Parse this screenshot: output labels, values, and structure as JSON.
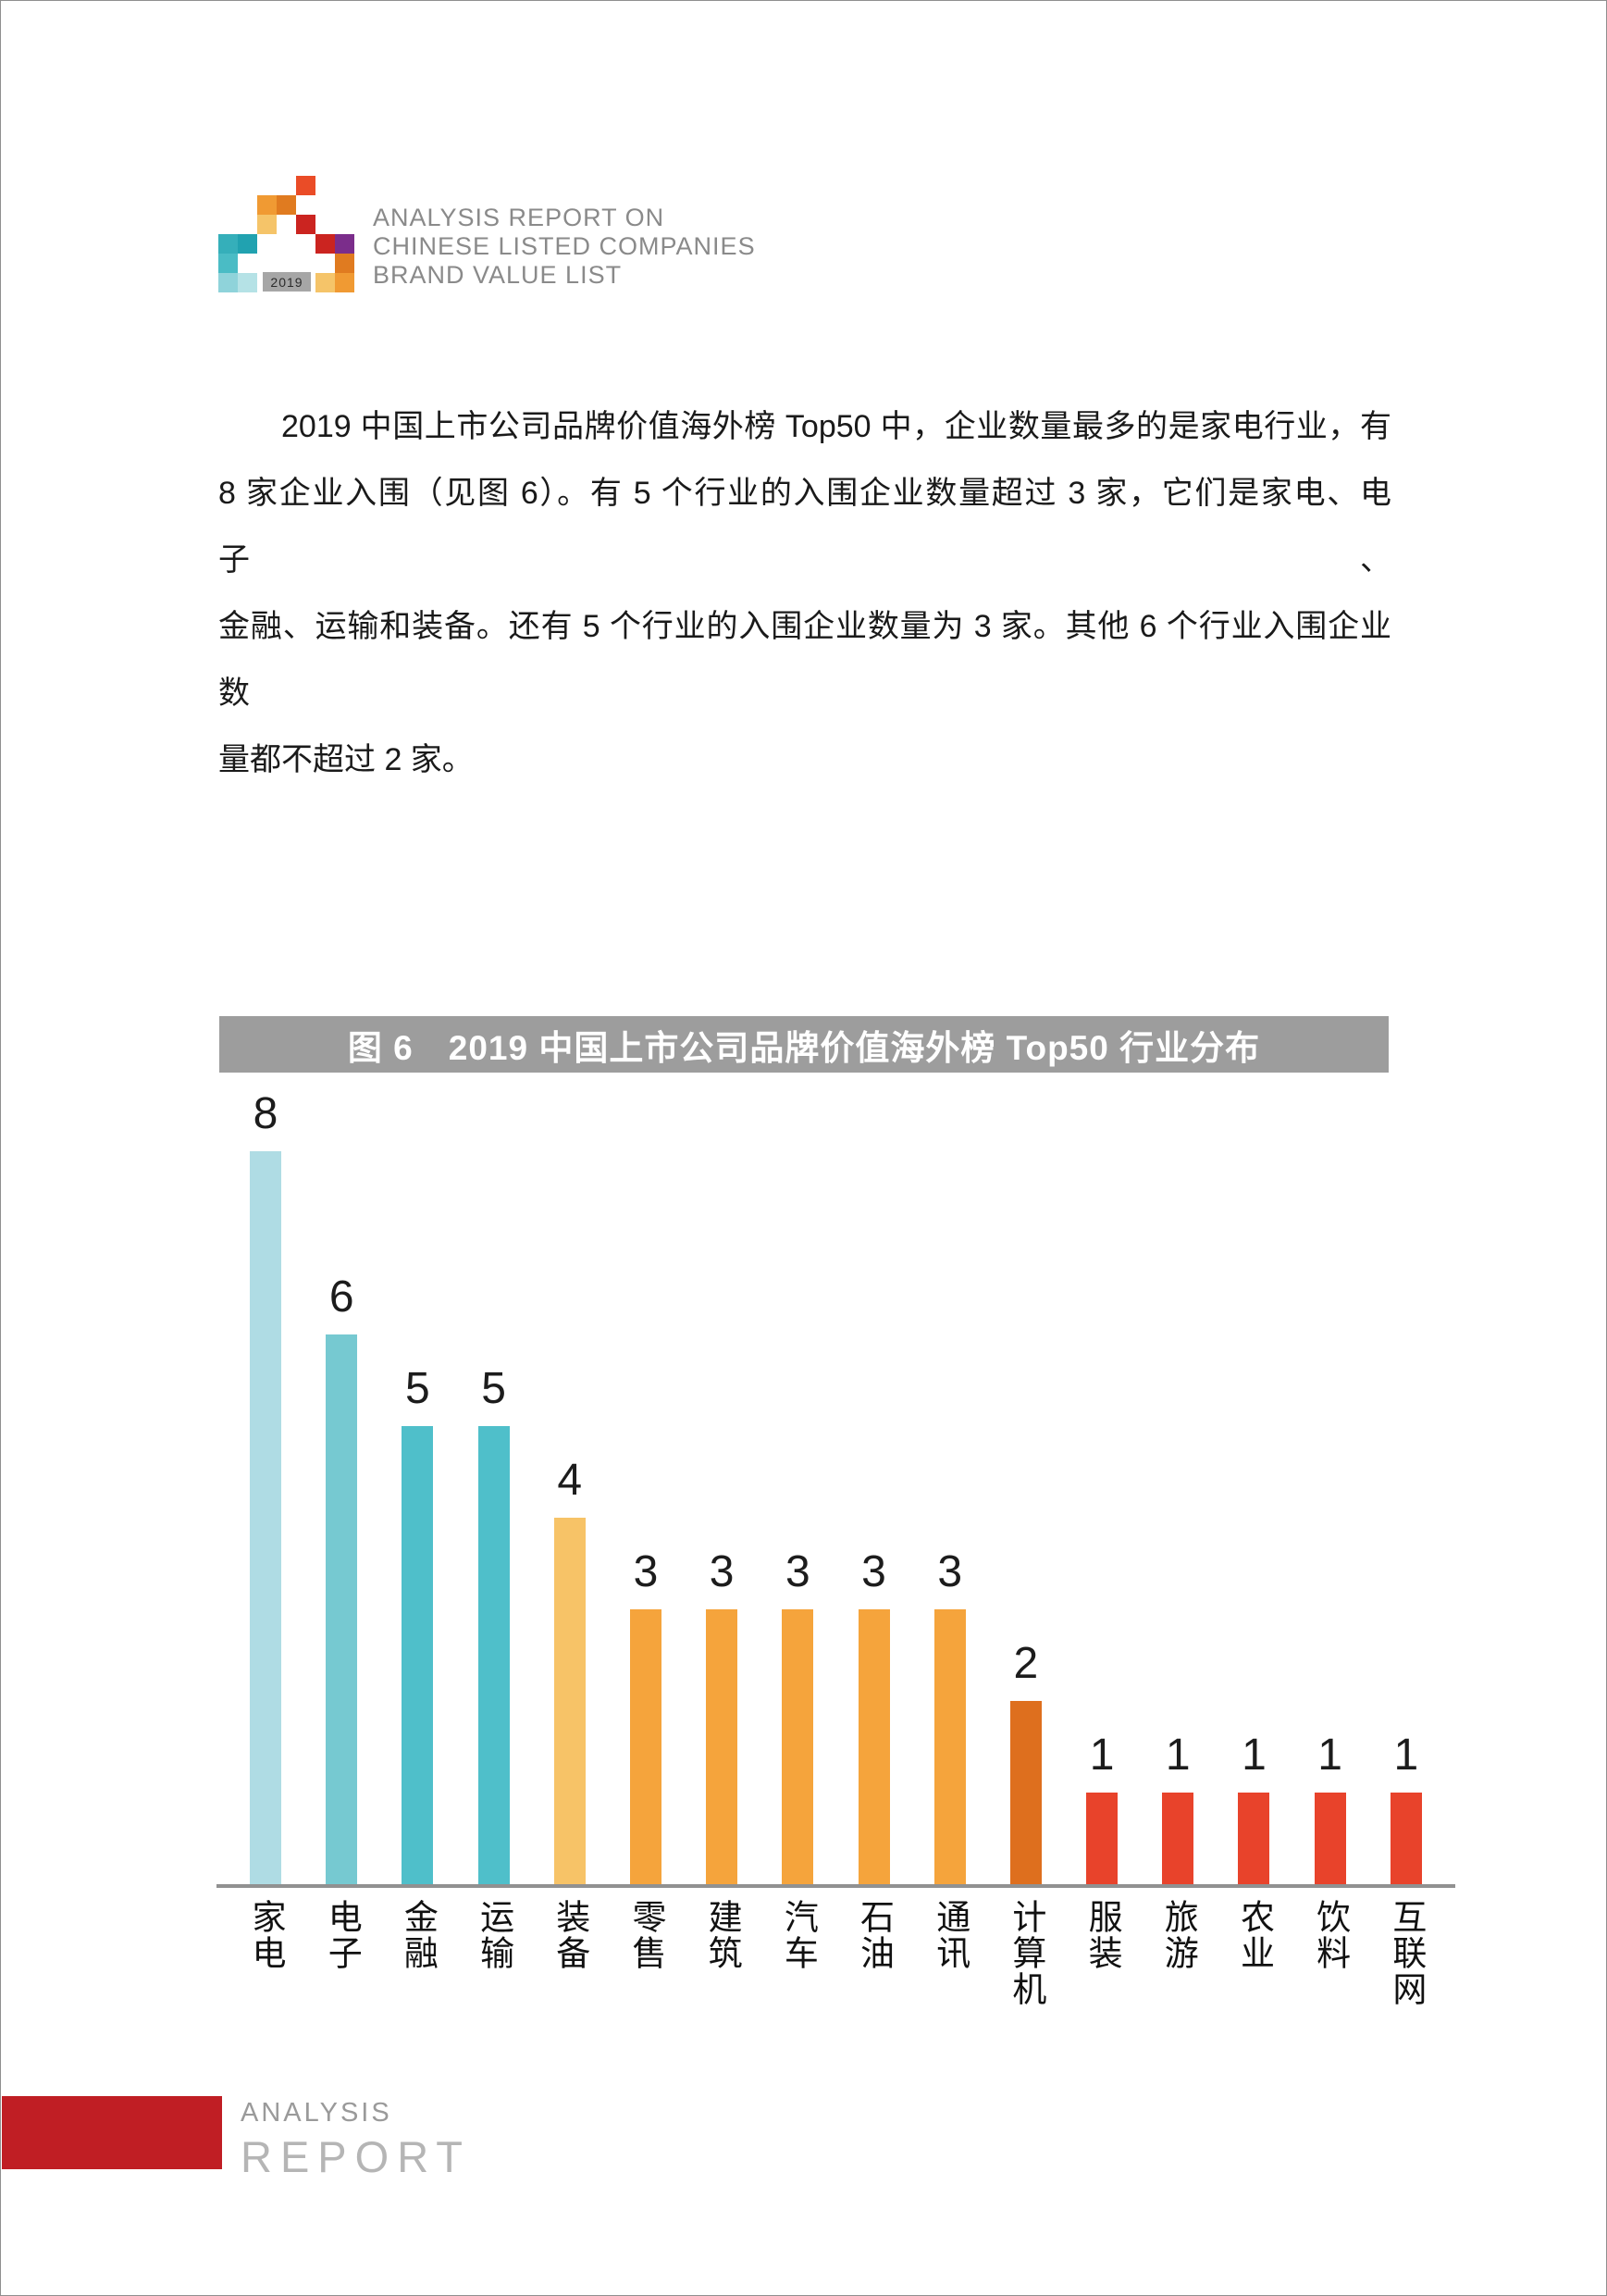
{
  "logo": {
    "year": "2019",
    "year_box_bg": "#a6a6a6",
    "title_lines": [
      "ANALYSIS REPORT ON",
      "CHINESE LISTED COMPANIES",
      "BRAND VALUE LIST"
    ],
    "squares": [
      {
        "c": 4,
        "r": 0,
        "color": "#EA4C27"
      },
      {
        "c": 2,
        "r": 1,
        "color": "#F09A33"
      },
      {
        "c": 3,
        "r": 1,
        "color": "#E07B20"
      },
      {
        "c": 2,
        "r": 2,
        "color": "#F5C469"
      },
      {
        "c": 4,
        "r": 2,
        "color": "#CB2420"
      },
      {
        "c": 0,
        "r": 3,
        "color": "#35AFBA"
      },
      {
        "c": 1,
        "r": 3,
        "color": "#21A2B0"
      },
      {
        "c": 5,
        "r": 3,
        "color": "#CB2420"
      },
      {
        "c": 6,
        "r": 3,
        "color": "#7B2D8B"
      },
      {
        "c": 0,
        "r": 4,
        "color": "#4ABCC5"
      },
      {
        "c": 6,
        "r": 4,
        "color": "#E07B20"
      },
      {
        "c": 0,
        "r": 5,
        "color": "#8FD3DA"
      },
      {
        "c": 1,
        "r": 5,
        "color": "#B5E2E6"
      },
      {
        "c": 5,
        "r": 5,
        "color": "#F5C469"
      },
      {
        "c": 6,
        "r": 5,
        "color": "#F09A33"
      }
    ]
  },
  "paragraph": {
    "lines": [
      "2019 中国上市公司品牌价值海外榜 Top50 中，企业数量最多的是家电行业，有",
      "8 家企业入围（见图 6）。有 5 个行业的入围企业数量超过 3 家，它们是家电、电子、",
      "金融、运输和装备。还有 5 个行业的入围企业数量为 3 家。其他 6 个行业入围企业数",
      "量都不超过 2 家。"
    ]
  },
  "chart_data": {
    "type": "bar",
    "title": "图 6　2019 中国上市公司品牌价值海外榜 Top50 行业分布",
    "categories": [
      "家电",
      "电子",
      "金融",
      "运输",
      "装备",
      "零售",
      "建筑",
      "汽车",
      "石油",
      "通讯",
      "计算机",
      "服装",
      "旅游",
      "农业",
      "饮料",
      "互联网"
    ],
    "values": [
      8,
      6,
      5,
      5,
      4,
      3,
      3,
      3,
      3,
      3,
      2,
      1,
      1,
      1,
      1,
      1
    ],
    "bar_colors": [
      "#AFDCE4",
      "#76C9D1",
      "#4FBFCA",
      "#4FBFCA",
      "#F7C367",
      "#F5A43C",
      "#F5A43C",
      "#F5A43C",
      "#F5A43C",
      "#F5A43C",
      "#DE6F1E",
      "#E8432B",
      "#E8432B",
      "#E8432B",
      "#E8432B",
      "#E8432B"
    ],
    "ylim": [
      0,
      8
    ],
    "grid": false,
    "legend": false,
    "data_labels_shown": true,
    "title_bar_bg": "#9D9D9D",
    "axis_color": "#919191"
  },
  "footer": {
    "line1": "ANALYSIS",
    "line2": "REPORT",
    "accent_color": "#C01E24"
  }
}
